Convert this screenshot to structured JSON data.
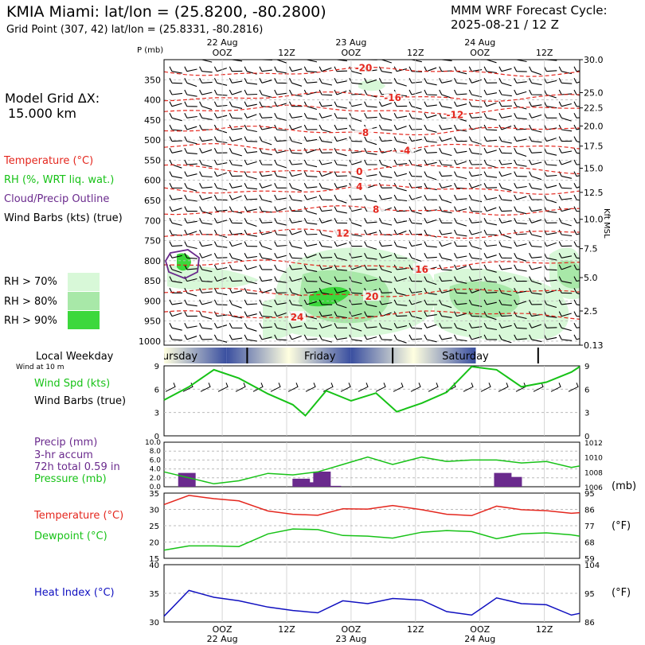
{
  "header": {
    "title": "KMIA Miami:  lat/lon = (25.8200, -80.2800)",
    "subtitle": "Grid Point (307, 42) lat/lon = (25.8331, -80.2816)",
    "cycle_line1": "MMM WRF Forecast Cycle:",
    "cycle_line2": "2025-08-21 / 12  Z",
    "grid_line1": "Model Grid ΔX:",
    "grid_line2": "15.000 km"
  },
  "legend": {
    "temperature": "Temperature (°C)",
    "rh": "RH (%, WRT liq. wat.)",
    "cloud": "Cloud/Precip Outline",
    "wind": "Wind Barbs (kts) (true)",
    "rh70": "RH > 70%",
    "rh80": "RH > 80%",
    "rh90": "RH > 90%",
    "rh_colors": [
      "#d8f8d8",
      "#a8e8a8",
      "#3cd83c"
    ]
  },
  "time_axis": {
    "top_labels": [
      {
        "x": 0.14,
        "day": "22 Aug",
        "hour": "OOZ"
      },
      {
        "x": 0.295,
        "day": "",
        "hour": "12Z"
      },
      {
        "x": 0.45,
        "day": "23 Aug",
        "hour": "OOZ"
      },
      {
        "x": 0.605,
        "day": "",
        "hour": "12Z"
      },
      {
        "x": 0.76,
        "day": "24 Aug",
        "hour": "OOZ"
      },
      {
        "x": 0.915,
        "day": "",
        "hour": "12Z"
      }
    ],
    "bottom_labels": [
      {
        "x": 0.14,
        "hour": "OOZ",
        "day": "22 Aug"
      },
      {
        "x": 0.295,
        "hour": "12Z",
        "day": ""
      },
      {
        "x": 0.45,
        "hour": "OOZ",
        "day": "23 Aug"
      },
      {
        "x": 0.605,
        "hour": "12Z",
        "day": ""
      },
      {
        "x": 0.76,
        "hour": "OOZ",
        "day": "24 Aug"
      },
      {
        "x": 0.915,
        "hour": "12Z",
        "day": ""
      }
    ]
  },
  "weekday_bar": {
    "title": "Local Weekday",
    "days": [
      {
        "name": "Thursday",
        "shown": "ursday",
        "center": 0.0
      },
      {
        "name": "Friday",
        "shown": "Friday",
        "center": 0.3
      },
      {
        "name": "Saturday",
        "shown": "Saturday",
        "center": 0.62
      }
    ]
  },
  "chart_data": [
    {
      "type": "contour",
      "name": "upper_air",
      "yaxis_label": "P (mb)",
      "right_axis_label": "Kft MSL",
      "pressure_levels": [
        350,
        400,
        450,
        500,
        550,
        600,
        650,
        700,
        750,
        800,
        850,
        900,
        950,
        1000
      ],
      "pressure_range": [
        300,
        1010
      ],
      "height_ticks": [
        {
          "p": 300,
          "label": "30.0"
        },
        {
          "p": 382,
          "label": "25.0"
        },
        {
          "p": 420,
          "label": "22.5"
        },
        {
          "p": 465,
          "label": "20.0"
        },
        {
          "p": 515,
          "label": "17.5"
        },
        {
          "p": 570,
          "label": "15.0"
        },
        {
          "p": 630,
          "label": "12.5"
        },
        {
          "p": 697,
          "label": "10.0"
        },
        {
          "p": 770,
          "label": "7.5"
        },
        {
          "p": 842,
          "label": "5.0"
        },
        {
          "p": 925,
          "label": "2.5"
        },
        {
          "p": 1010,
          "label": "0.13"
        }
      ],
      "temperature_contours": [
        {
          "label": "-20",
          "p": 330,
          "label_t": 0.48
        },
        {
          "label": "-16",
          "p": 392,
          "label_t": 0.55
        },
        {
          "label": "-12",
          "p": 425,
          "label_t": 0.7
        },
        {
          "label": "-8",
          "p": 477,
          "label_t": 0.48
        },
        {
          "label": "-4",
          "p": 520,
          "label_t": 0.58
        },
        {
          "label": "0",
          "p": 572,
          "label_t": 0.47
        },
        {
          "label": "4",
          "p": 623,
          "label_t": 0.47
        },
        {
          "label": "8",
          "p": 675,
          "label_t": 0.51
        },
        {
          "label": "12",
          "p": 733,
          "label_t": 0.43
        },
        {
          "label": "16",
          "p": 810,
          "label_t": 0.62
        },
        {
          "label": "20",
          "p": 880,
          "label_t": 0.5
        },
        {
          "label": "24",
          "p": 935,
          "label_t": 0.32
        }
      ]
    },
    {
      "type": "line",
      "name": "wind_speed",
      "title": "Wind at 10 m",
      "series_label": "Wind Spd (kts)",
      "barbs_label": "Wind Barbs (true)",
      "ylim": [
        0,
        9
      ],
      "yticks": [
        0,
        3,
        6,
        9
      ],
      "x": [
        0.0,
        0.06,
        0.12,
        0.18,
        0.25,
        0.31,
        0.34,
        0.39,
        0.45,
        0.51,
        0.56,
        0.62,
        0.68,
        0.74,
        0.8,
        0.86,
        0.92,
        0.98,
        1.0
      ],
      "values": [
        4.6,
        6.3,
        8.5,
        7.4,
        5.4,
        4.0,
        2.6,
        5.8,
        4.5,
        5.5,
        3.1,
        4.2,
        5.6,
        8.9,
        8.5,
        6.3,
        6.9,
        8.2,
        8.9
      ]
    },
    {
      "type": "bar+line",
      "name": "precip_pressure",
      "precip_label": "Precip (mm)",
      "accum_label": "3-hr accum",
      "total_label": "72h total 0.59 in",
      "pressure_label": "Pressure (mb)",
      "right_unit": "(mb)",
      "precip_ylim": [
        0,
        10
      ],
      "precip_ticks": [
        "0.0",
        "2.0",
        "4.0",
        "6.0",
        "8.0",
        "10.0"
      ],
      "pressure_ylim": [
        1006,
        1012
      ],
      "pressure_ticks": [
        "1006",
        "1008",
        "1010",
        "1012"
      ],
      "precip_bars": [
        {
          "x": 0.11,
          "value": 3.1
        },
        {
          "x": 0.5,
          "value": 1.8
        },
        {
          "x": 0.55,
          "value": 1.0
        },
        {
          "x": 0.6,
          "value": 3.4
        },
        {
          "x": 0.65,
          "value": 0.2
        },
        {
          "x": 0.93,
          "value": 3.1
        },
        {
          "x": 0.98,
          "value": 2.2
        }
      ],
      "pressure_x": [
        0.0,
        0.06,
        0.12,
        0.18,
        0.25,
        0.31,
        0.37,
        0.43,
        0.49,
        0.55,
        0.62,
        0.68,
        0.74,
        0.8,
        0.86,
        0.92,
        0.98,
        1.0
      ],
      "pressure_values": [
        1008.0,
        1007.2,
        1006.4,
        1006.8,
        1007.8,
        1007.6,
        1008.0,
        1009.0,
        1010.0,
        1009.0,
        1010.0,
        1009.4,
        1009.6,
        1009.6,
        1009.2,
        1009.4,
        1008.6,
        1008.8
      ]
    },
    {
      "type": "line",
      "name": "temp_dewpoint",
      "temp_label": "Temperature (°C)",
      "dew_label": "Dewpoint (°C)",
      "right_unit": "(°F)",
      "ylim": [
        15,
        35
      ],
      "yticks": [
        15,
        20,
        25,
        30,
        35
      ],
      "right_ticks": [
        {
          "c": 15,
          "label": "59"
        },
        {
          "c": 20,
          "label": "68"
        },
        {
          "c": 25,
          "label": "77"
        },
        {
          "c": 30,
          "label": "86"
        },
        {
          "c": 35,
          "label": "95"
        }
      ],
      "x": [
        0.0,
        0.06,
        0.12,
        0.18,
        0.25,
        0.31,
        0.37,
        0.43,
        0.49,
        0.55,
        0.62,
        0.68,
        0.74,
        0.8,
        0.86,
        0.92,
        0.98,
        1.0
      ],
      "temperature": [
        31.5,
        34.3,
        33.3,
        32.6,
        29.5,
        28.5,
        28.2,
        30.2,
        30.1,
        31.2,
        29.9,
        28.5,
        28.1,
        31.0,
        29.9,
        29.6,
        28.8,
        29.0
      ],
      "dewpoint": [
        17.5,
        18.8,
        18.8,
        18.6,
        22.5,
        24.0,
        23.8,
        22.0,
        21.8,
        21.2,
        23.0,
        23.5,
        23.2,
        21.0,
        22.5,
        22.8,
        22.2,
        21.8
      ]
    },
    {
      "type": "line",
      "name": "heat_index",
      "label": "Heat Index (°C)",
      "right_unit": "(°F)",
      "ylim": [
        30,
        40
      ],
      "yticks": [
        30,
        35,
        40
      ],
      "right_ticks": [
        {
          "c": 30,
          "label": "86"
        },
        {
          "c": 35,
          "label": "95"
        },
        {
          "c": 40,
          "label": "104"
        }
      ],
      "x": [
        0.0,
        0.06,
        0.12,
        0.18,
        0.25,
        0.31,
        0.37,
        0.43,
        0.49,
        0.55,
        0.62,
        0.68,
        0.74,
        0.8,
        0.86,
        0.92,
        0.98,
        1.0
      ],
      "values": [
        31.0,
        35.5,
        34.3,
        33.7,
        32.6,
        32.0,
        31.6,
        33.7,
        33.2,
        34.1,
        33.8,
        31.8,
        31.2,
        34.2,
        33.2,
        33.0,
        31.2,
        31.5
      ]
    }
  ]
}
